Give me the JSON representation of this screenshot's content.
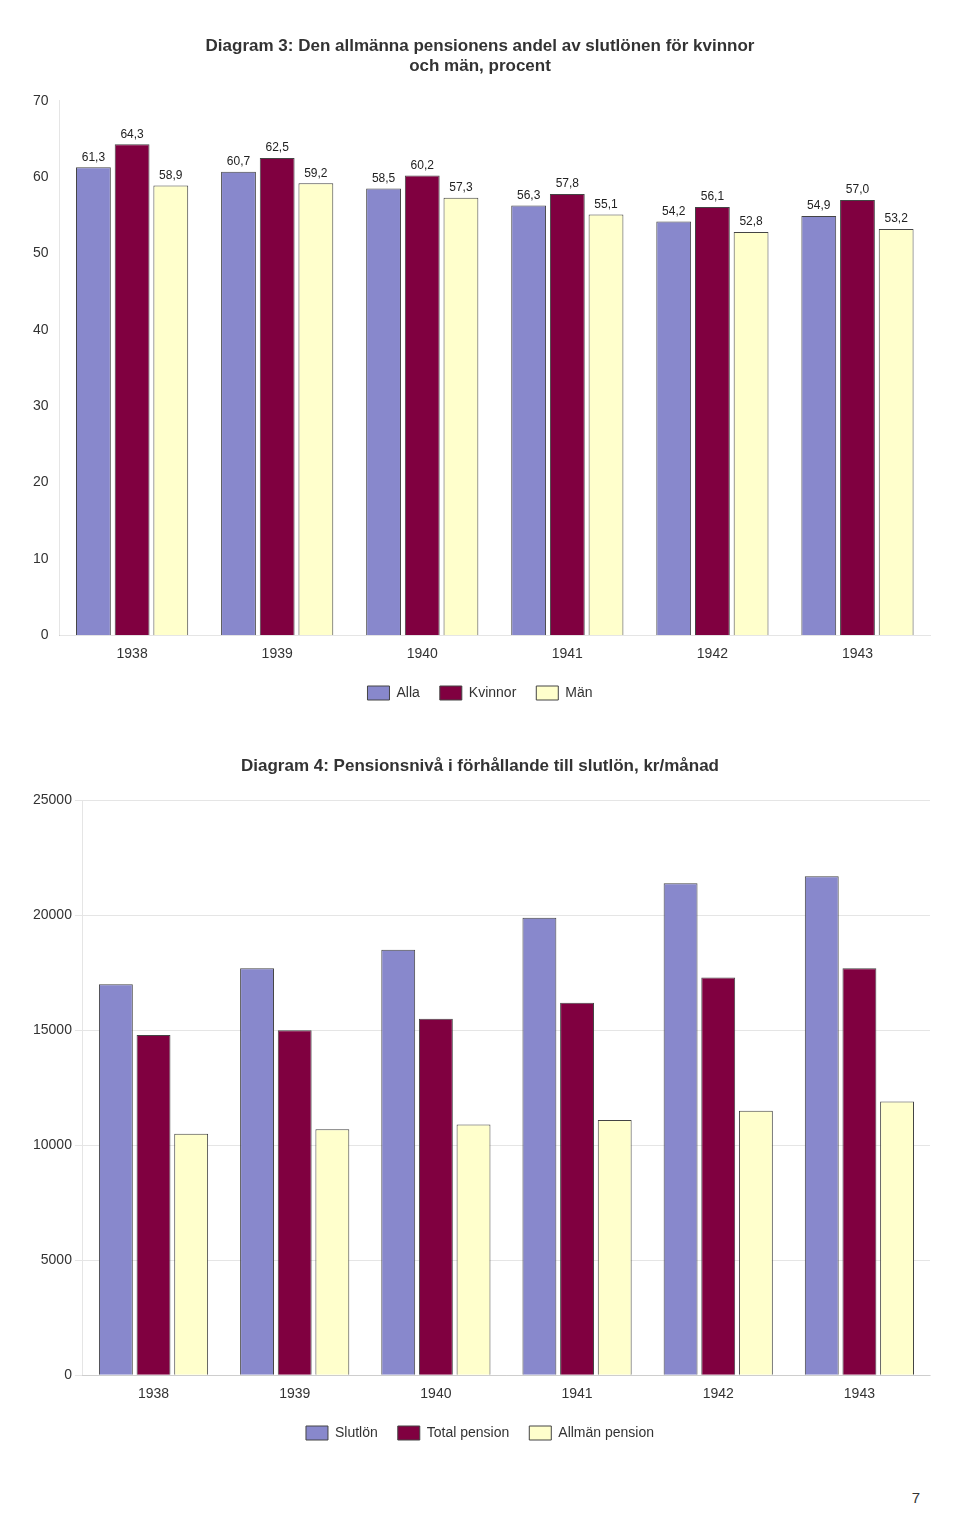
{
  "chart_data": [
    {
      "type": "bar",
      "title": "Diagram 3: Den allmänna pensionens andel av slutlönen för kvinnor\noch män, procent",
      "categories": [
        "1938",
        "1939",
        "1940",
        "1941",
        "1942",
        "1943"
      ],
      "series": [
        {
          "name": "Alla",
          "color": "#8888cc",
          "values": [
            61.3,
            60.7,
            58.5,
            56.3,
            54.2,
            54.9
          ],
          "value_labels": [
            "61,3",
            "60,7",
            "58,5",
            "56,3",
            "54,2",
            "54,9"
          ]
        },
        {
          "name": "Kvinnor",
          "color": "#800040",
          "values": [
            64.3,
            62.5,
            60.2,
            57.8,
            56.1,
            57.0
          ],
          "value_labels": [
            "64,3",
            "62,5",
            "60,2",
            "57,8",
            "56,1",
            "57,0"
          ]
        },
        {
          "name": "Män",
          "color": "#ffffcc",
          "values": [
            58.9,
            59.2,
            57.3,
            55.1,
            52.8,
            53.2
          ],
          "value_labels": [
            "58,9",
            "59,2",
            "57,3",
            "55,1",
            "52,8",
            "53,2"
          ]
        }
      ],
      "ylim": [
        0,
        70
      ],
      "yticks": [
        0,
        10,
        20,
        30,
        40,
        50,
        60,
        70
      ],
      "grid": false,
      "legend": "bottom",
      "data_labels": true
    },
    {
      "type": "bar",
      "title": "Diagram 4: Pensionsnivå i förhållande till slutlön, kr/månad",
      "categories": [
        "1938",
        "1939",
        "1940",
        "1941",
        "1942",
        "1943"
      ],
      "series": [
        {
          "name": "Slutlön",
          "color": "#8888cc",
          "values": [
            17000,
            17700,
            18500,
            19900,
            21400,
            21700
          ]
        },
        {
          "name": "Total pension",
          "color": "#800040",
          "values": [
            14800,
            15000,
            15500,
            16200,
            17300,
            17700
          ]
        },
        {
          "name": "Allmän pension",
          "color": "#ffffcc",
          "values": [
            10500,
            10700,
            10900,
            11100,
            11500,
            11900
          ]
        }
      ],
      "ylim": [
        0,
        25000
      ],
      "yticks": [
        0,
        5000,
        10000,
        15000,
        20000,
        25000
      ],
      "grid": true,
      "legend": "bottom",
      "annotations": [
        "7"
      ]
    }
  ]
}
